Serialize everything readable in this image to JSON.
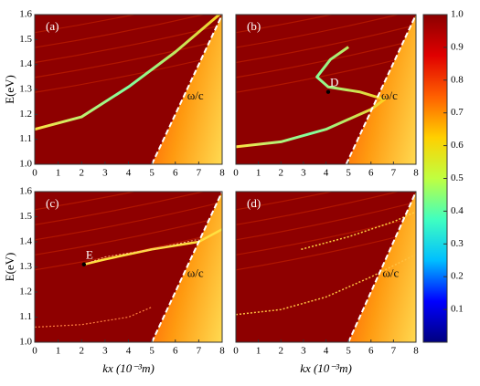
{
  "chart_data": [
    {
      "type": "heatmap",
      "panel_label": "(a)",
      "xlim": [
        0,
        8
      ],
      "ylim": [
        1.0,
        1.6
      ],
      "xticks": [
        0,
        1,
        2,
        3,
        4,
        5,
        6,
        7,
        8
      ],
      "yticks": [
        {
          "value": 1.0,
          "label": "1.0"
        },
        1.1,
        1.2,
        1.3,
        1.4,
        1.5,
        1.6
      ],
      "y_label": "E(eV)",
      "light_line": {
        "x": [
          5,
          8
        ],
        "y": [
          1.0,
          1.6
        ]
      },
      "light_line_label": "ω/c"
    },
    {
      "type": "heatmap",
      "panel_label": "(b)",
      "xlim": [
        0,
        8
      ],
      "ylim": [
        1.0,
        1.6
      ],
      "xticks": [
        0,
        1,
        2,
        3,
        4,
        5,
        6,
        7,
        8
      ],
      "light_line": {
        "x": [
          4.9,
          8
        ],
        "y": [
          1.0,
          1.6
        ]
      },
      "light_line_label": "ω/c",
      "markers": [
        {
          "label": "D",
          "x": 4.1,
          "y": 1.29
        }
      ]
    },
    {
      "type": "heatmap",
      "panel_label": "(c)",
      "xlim": [
        0,
        8
      ],
      "ylim": [
        1.0,
        1.6
      ],
      "xticks": [
        0,
        1,
        2,
        3,
        4,
        5,
        6,
        7,
        8
      ],
      "yticks": [
        {
          "value": 1.0,
          "label": "1.0"
        },
        1.1,
        1.2,
        1.3,
        1.4,
        1.5,
        1.6
      ],
      "y_label": "E(eV)",
      "x_label": "kx (10⁻³m)",
      "light_line": {
        "x": [
          5,
          8
        ],
        "y": [
          1.0,
          1.6
        ]
      },
      "light_line_label": "ω/c",
      "markers": [
        {
          "label": "E",
          "x": 2.1,
          "y": 1.31
        }
      ]
    },
    {
      "type": "heatmap",
      "panel_label": "(d)",
      "xlim": [
        0,
        8
      ],
      "ylim": [
        1.0,
        1.6
      ],
      "xticks": [
        0,
        1,
        2,
        3,
        4,
        5,
        6,
        7,
        8
      ],
      "x_label": "kx (10⁻³m)",
      "light_line": {
        "x": [
          5,
          8
        ],
        "y": [
          1.0,
          1.6
        ]
      },
      "light_line_label": "ω/c"
    }
  ],
  "colorbar": {
    "ylim": [
      0,
      1
    ],
    "yticks": [
      0.1,
      0.2,
      0.3,
      0.4,
      0.5,
      0.6,
      0.7,
      0.8,
      0.9,
      {
        "value": 1.0,
        "label": "1.0"
      }
    ],
    "colors": [
      "#00007f",
      "#0000ff",
      "#00bfff",
      "#40ffc0",
      "#c0ff40",
      "#ffd000",
      "#ff6000",
      "#e00000",
      "#8b0000"
    ]
  }
}
